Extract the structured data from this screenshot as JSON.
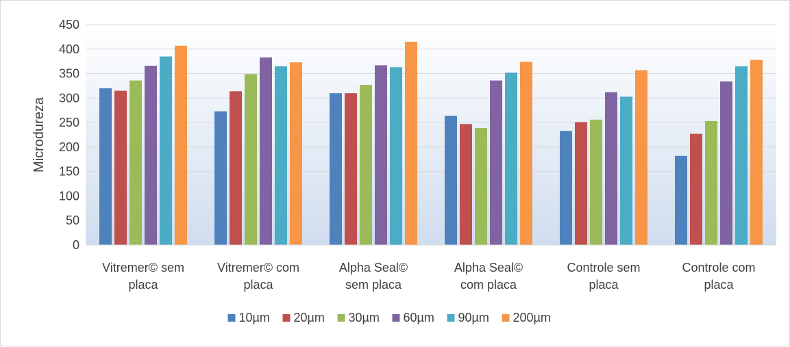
{
  "chart_data": {
    "type": "bar",
    "title": "",
    "xlabel": "",
    "ylabel": "Microdureza",
    "ylim": [
      0,
      450
    ],
    "yticks": [
      0,
      50,
      100,
      150,
      200,
      250,
      300,
      350,
      400,
      450
    ],
    "grid": true,
    "legend_position": "bottom",
    "categories": [
      [
        "Vitremer© sem",
        "placa"
      ],
      [
        "Vitremer© com",
        "placa"
      ],
      [
        "Alpha Seal©",
        "sem placa"
      ],
      [
        "Alpha Seal©",
        "com placa"
      ],
      [
        "Controle sem",
        "placa"
      ],
      [
        "Controle com",
        "placa"
      ]
    ],
    "series": [
      {
        "name": "10µm",
        "color": "#4f81bd",
        "values": [
          320,
          273,
          310,
          264,
          233,
          182
        ]
      },
      {
        "name": "20µm",
        "color": "#c0504d",
        "values": [
          315,
          314,
          310,
          247,
          251,
          227
        ]
      },
      {
        "name": "30µm",
        "color": "#9bbb59",
        "values": [
          336,
          349,
          327,
          239,
          256,
          253
        ]
      },
      {
        "name": "60µm",
        "color": "#8064a2",
        "values": [
          366,
          383,
          367,
          336,
          312,
          334
        ]
      },
      {
        "name": "90µm",
        "color": "#4bacc6",
        "values": [
          385,
          365,
          363,
          352,
          303,
          365
        ]
      },
      {
        "name": "200µm",
        "color": "#f79646",
        "values": [
          407,
          373,
          415,
          374,
          357,
          378
        ]
      }
    ]
  },
  "colors": {
    "plot_gradient_top": "#ffffff",
    "plot_gradient_bottom": "#d0ddef",
    "gridline": "#d9d9d9",
    "axis_line": "#d9d9d9",
    "text": "#404040"
  }
}
